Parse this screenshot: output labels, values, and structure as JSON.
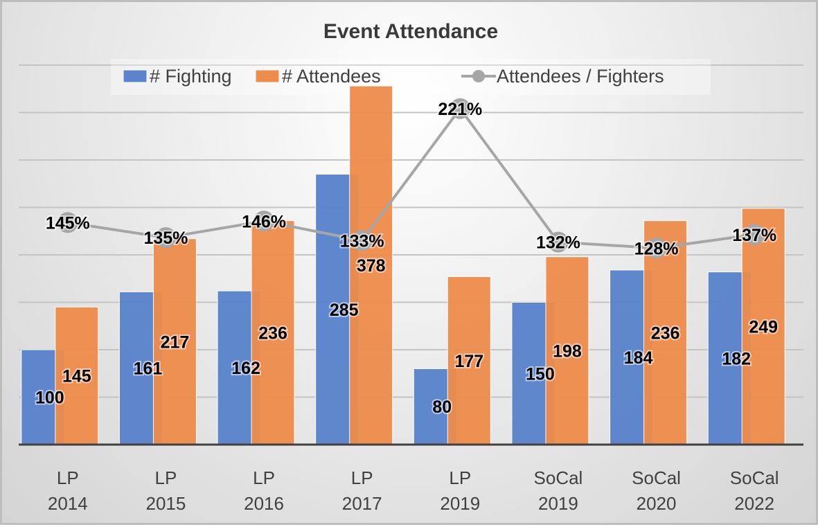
{
  "chart_data": {
    "type": "bar",
    "title": "Event Attendance",
    "xlabel": "",
    "ylabel": "",
    "categories": [
      [
        "LP",
        "2014"
      ],
      [
        "LP",
        "2015"
      ],
      [
        "LP",
        "2016"
      ],
      [
        "LP",
        "2017"
      ],
      [
        "LP",
        "2019"
      ],
      [
        "SoCal",
        "2019"
      ],
      [
        "SoCal",
        "2020"
      ],
      [
        "SoCal",
        "2022"
      ]
    ],
    "series": [
      {
        "name": "# Fighting",
        "type": "bar",
        "color": "#5b84cc",
        "values": [
          100,
          161,
          162,
          285,
          80,
          150,
          184,
          182
        ]
      },
      {
        "name": "# Attendees",
        "type": "bar",
        "color": "#ee8c4b",
        "values": [
          145,
          217,
          236,
          378,
          177,
          198,
          236,
          249
        ]
      },
      {
        "name": "Attendees / Fighters",
        "type": "line",
        "axis": "secondary",
        "color": "#a6a6a6",
        "values": [
          145,
          135,
          146,
          133,
          221,
          132,
          128,
          137
        ],
        "unit": "%"
      }
    ],
    "ylim": [
      0,
      400
    ],
    "y2lim": [
      -3,
      250
    ],
    "grid_step": 50,
    "grid": true,
    "axis_tick_labels_visible": false,
    "legend_position": "top"
  }
}
